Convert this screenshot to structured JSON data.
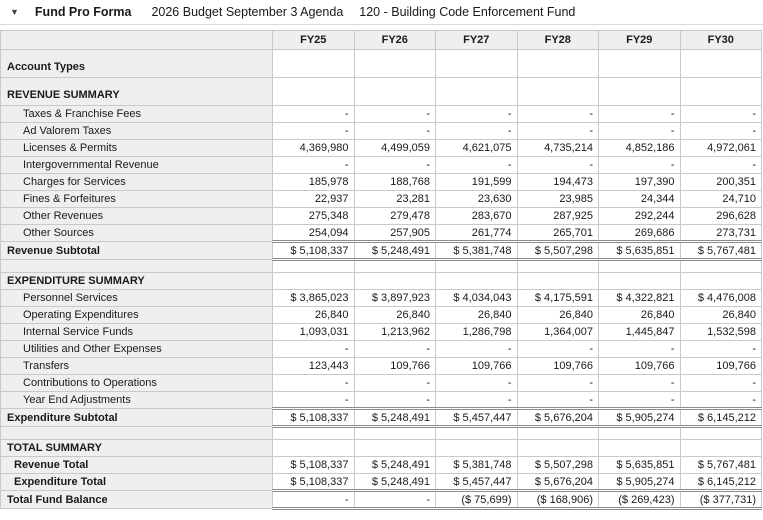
{
  "header": {
    "collapse_icon": "▼",
    "title": "Fund Pro Forma",
    "budget_name": "2026 Budget September 3 Agenda",
    "fund_name": "120 - Building Code Enforcement Fund"
  },
  "table": {
    "columns": [
      "",
      "FY25",
      "FY26",
      "FY27",
      "FY28",
      "FY29",
      "FY30"
    ],
    "rows": [
      {
        "type": "section-tall",
        "label": "Account Types",
        "values": [
          "",
          "",
          "",
          "",
          "",
          ""
        ]
      },
      {
        "type": "section-tall",
        "label": "REVENUE SUMMARY",
        "values": [
          "",
          "",
          "",
          "",
          "",
          ""
        ]
      },
      {
        "type": "detail",
        "label": "Taxes & Franchise Fees",
        "values": [
          "-",
          "-",
          "-",
          "-",
          "-",
          "-"
        ]
      },
      {
        "type": "detail",
        "label": "Ad Valorem Taxes",
        "values": [
          "-",
          "-",
          "-",
          "-",
          "-",
          "-"
        ]
      },
      {
        "type": "detail",
        "label": "Licenses & Permits",
        "values": [
          "4,369,980",
          "4,499,059",
          "4,621,075",
          "4,735,214",
          "4,852,186",
          "4,972,061"
        ]
      },
      {
        "type": "detail",
        "label": "Intergovernmental Revenue",
        "values": [
          "-",
          "-",
          "-",
          "-",
          "-",
          "-"
        ]
      },
      {
        "type": "detail",
        "label": "Charges for Services",
        "values": [
          "185,978",
          "188,768",
          "191,599",
          "194,473",
          "197,390",
          "200,351"
        ]
      },
      {
        "type": "detail",
        "label": "Fines & Forfeitures",
        "values": [
          "22,937",
          "23,281",
          "23,630",
          "23,985",
          "24,344",
          "24,710"
        ]
      },
      {
        "type": "detail",
        "label": "Other Revenues",
        "values": [
          "275,348",
          "279,478",
          "283,670",
          "287,925",
          "292,244",
          "296,628"
        ]
      },
      {
        "type": "detail",
        "label": "Other Sources",
        "values": [
          "254,094",
          "257,905",
          "261,774",
          "265,701",
          "269,686",
          "273,731"
        ]
      },
      {
        "type": "subtotal",
        "label": "Revenue Subtotal",
        "values": [
          "$ 5,108,337",
          "$ 5,248,491",
          "$ 5,381,748",
          "$ 5,507,298",
          "$ 5,635,851",
          "$ 5,767,481"
        ]
      },
      {
        "type": "blank",
        "label": "",
        "values": [
          "",
          "",
          "",
          "",
          "",
          ""
        ]
      },
      {
        "type": "section",
        "label": "EXPENDITURE SUMMARY",
        "values": [
          "",
          "",
          "",
          "",
          "",
          ""
        ]
      },
      {
        "type": "detail",
        "label": "Personnel Services",
        "values": [
          "$ 3,865,023",
          "$ 3,897,923",
          "$ 4,034,043",
          "$ 4,175,591",
          "$ 4,322,821",
          "$ 4,476,008"
        ]
      },
      {
        "type": "detail",
        "label": "Operating Expenditures",
        "values": [
          "26,840",
          "26,840",
          "26,840",
          "26,840",
          "26,840",
          "26,840"
        ]
      },
      {
        "type": "detail",
        "label": "Internal Service Funds",
        "values": [
          "1,093,031",
          "1,213,962",
          "1,286,798",
          "1,364,007",
          "1,445,847",
          "1,532,598"
        ]
      },
      {
        "type": "detail",
        "label": "Utilities and Other Expenses",
        "values": [
          "-",
          "-",
          "-",
          "-",
          "-",
          "-"
        ]
      },
      {
        "type": "detail",
        "label": "Transfers",
        "values": [
          "123,443",
          "109,766",
          "109,766",
          "109,766",
          "109,766",
          "109,766"
        ]
      },
      {
        "type": "detail",
        "label": "Contributions to Operations",
        "values": [
          "-",
          "-",
          "-",
          "-",
          "-",
          "-"
        ]
      },
      {
        "type": "detail",
        "label": "Year End Adjustments",
        "values": [
          "-",
          "-",
          "-",
          "-",
          "-",
          "-"
        ]
      },
      {
        "type": "subtotal",
        "label": "Expenditure Subtotal",
        "values": [
          "$ 5,108,337",
          "$ 5,248,491",
          "$ 5,457,447",
          "$ 5,676,204",
          "$ 5,905,274",
          "$ 6,145,212"
        ]
      },
      {
        "type": "blank",
        "label": "",
        "values": [
          "",
          "",
          "",
          "",
          "",
          ""
        ]
      },
      {
        "type": "section",
        "label": "TOTAL SUMMARY",
        "values": [
          "",
          "",
          "",
          "",
          "",
          ""
        ]
      },
      {
        "type": "total",
        "label": "Revenue Total",
        "values": [
          "$ 5,108,337",
          "$ 5,248,491",
          "$ 5,381,748",
          "$ 5,507,298",
          "$ 5,635,851",
          "$ 5,767,481"
        ]
      },
      {
        "type": "total-last",
        "label": "Expenditure Total",
        "values": [
          "$ 5,108,337",
          "$ 5,248,491",
          "$ 5,457,447",
          "$ 5,676,204",
          "$ 5,905,274",
          "$ 6,145,212"
        ]
      },
      {
        "type": "grand",
        "label": "Total Fund Balance",
        "values": [
          "-",
          "-",
          "($ 75,699)",
          "($ 168,906)",
          "($ 269,423)",
          "($ 377,731)"
        ]
      }
    ]
  }
}
